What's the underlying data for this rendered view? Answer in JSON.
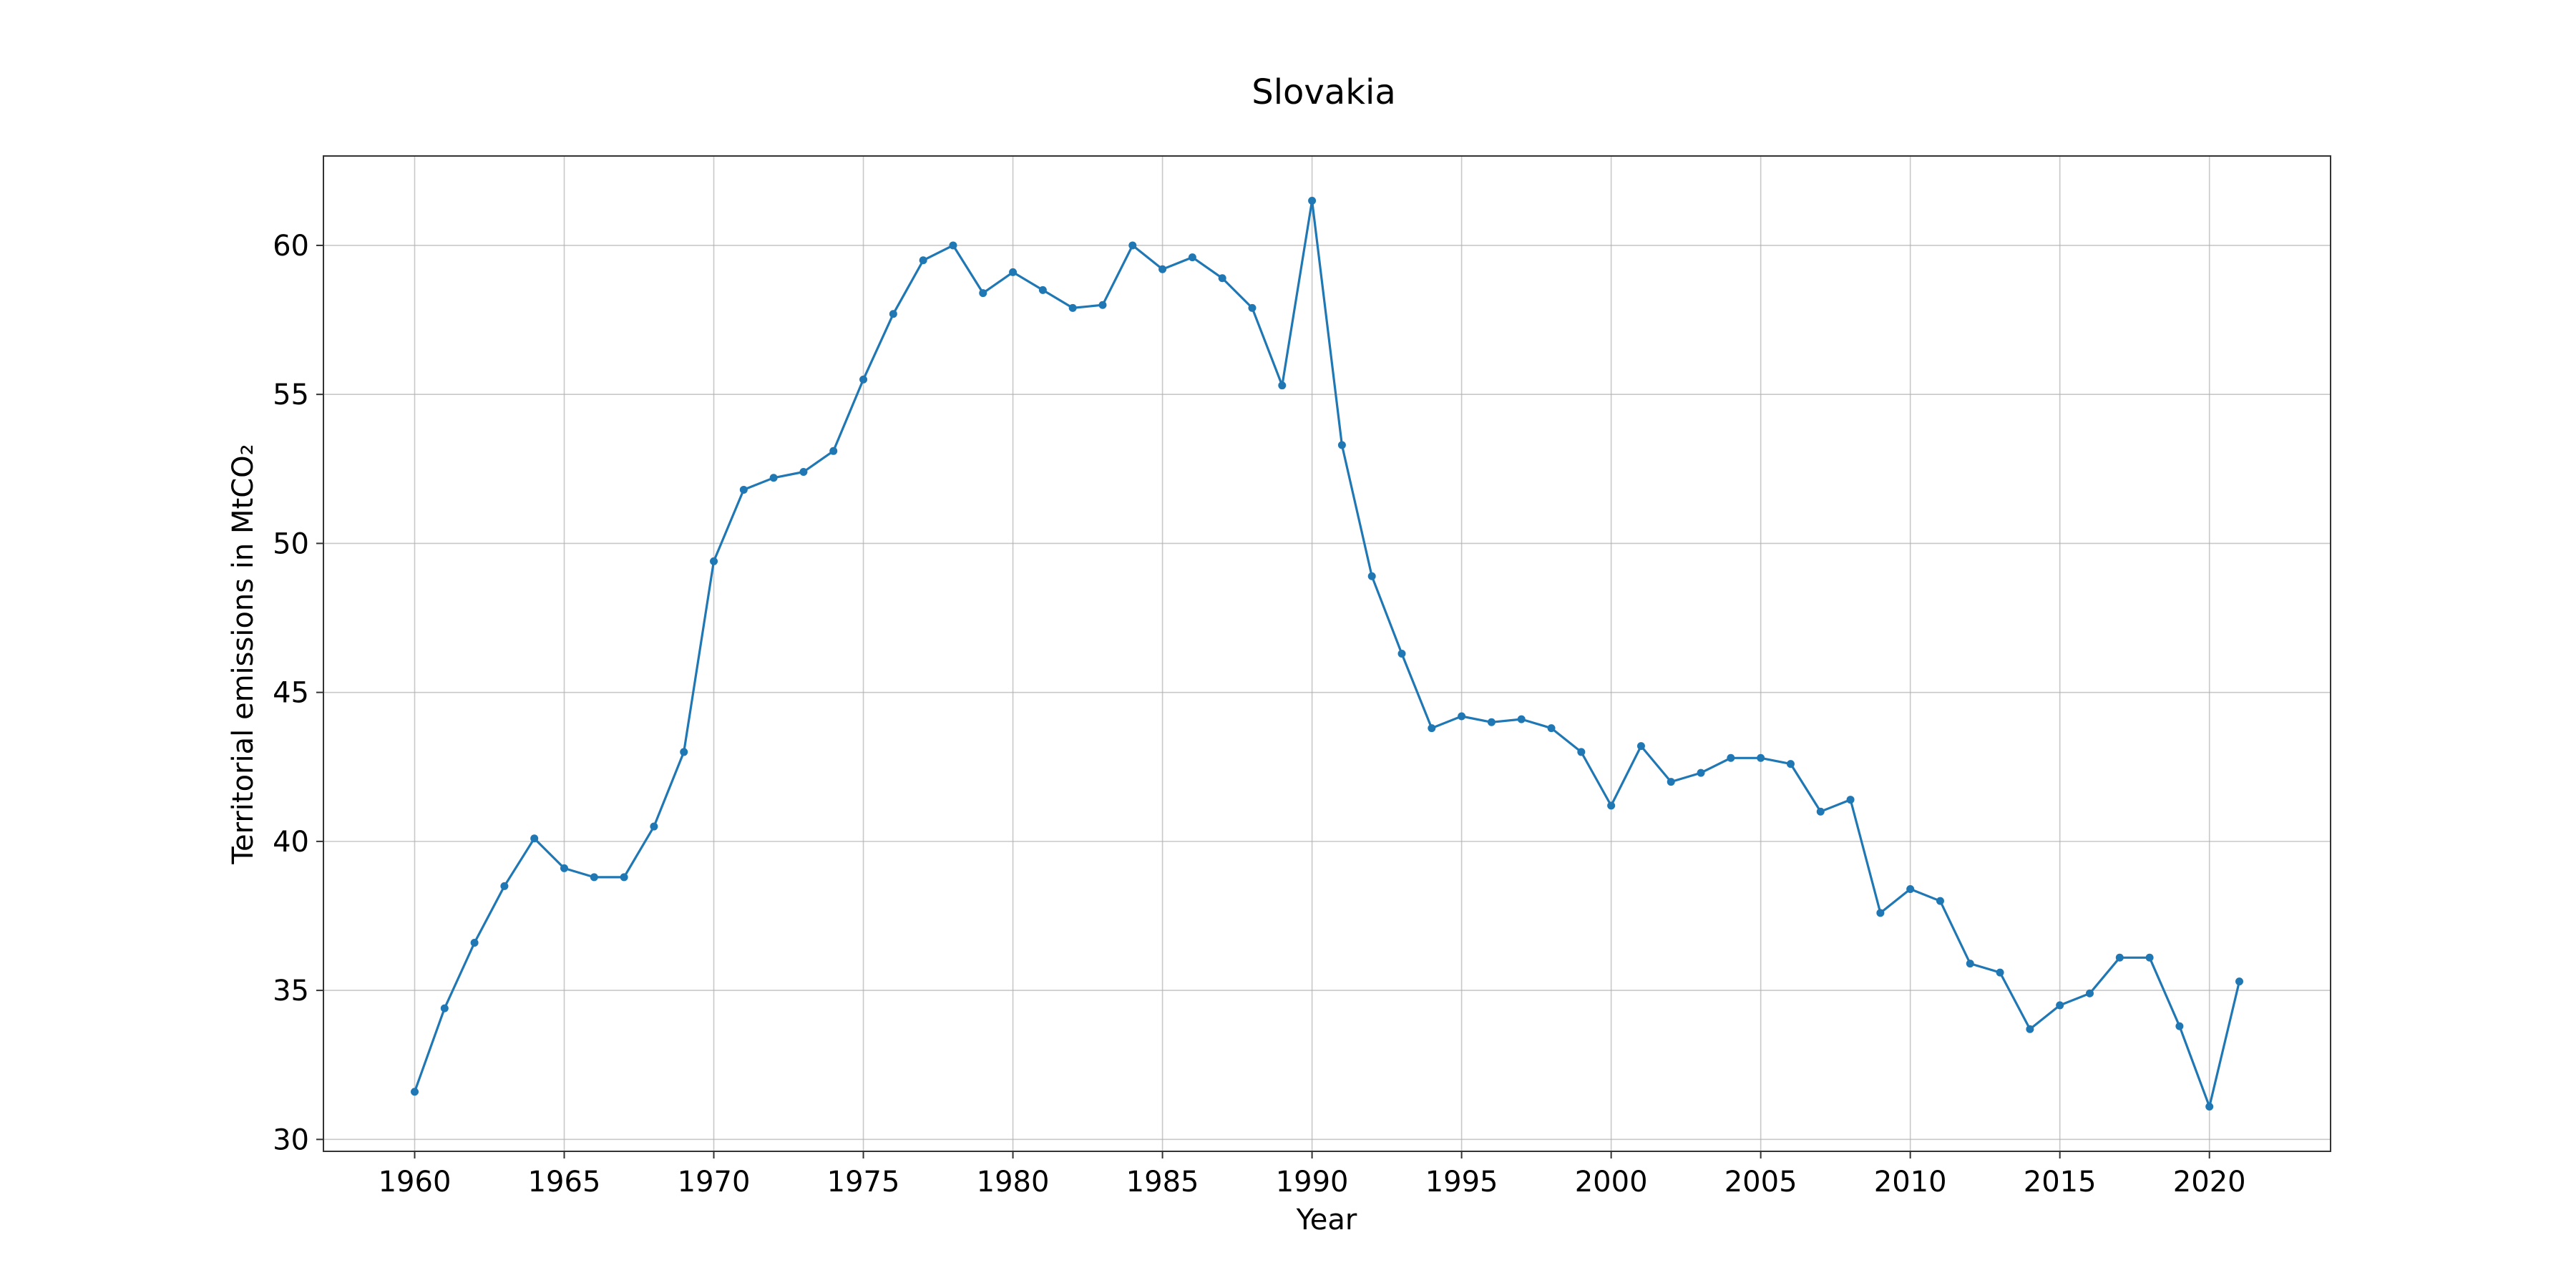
{
  "chart_data": {
    "type": "line",
    "title": "Slovakia",
    "xlabel": "Year",
    "ylabel": "Territorial emissions in MtCO₂",
    "xlim": [
      1956.95,
      2024.05
    ],
    "ylim": [
      29.6,
      63.0
    ],
    "xticks": [
      1960,
      1965,
      1970,
      1975,
      1980,
      1985,
      1990,
      1995,
      2000,
      2005,
      2010,
      2015,
      2020
    ],
    "yticks": [
      30,
      35,
      40,
      45,
      50,
      55,
      60
    ],
    "grid": true,
    "marker": "dot",
    "series": [
      {
        "color": "#1f77b4",
        "points": [
          [
            1960,
            31.6
          ],
          [
            1961,
            34.4
          ],
          [
            1962,
            36.6
          ],
          [
            1963,
            38.5
          ],
          [
            1964,
            40.1
          ],
          [
            1965,
            39.1
          ],
          [
            1966,
            38.8
          ],
          [
            1967,
            38.8
          ],
          [
            1968,
            40.5
          ],
          [
            1969,
            43.0
          ],
          [
            1970,
            49.4
          ],
          [
            1971,
            51.8
          ],
          [
            1972,
            52.2
          ],
          [
            1973,
            52.4
          ],
          [
            1974,
            53.1
          ],
          [
            1975,
            55.5
          ],
          [
            1976,
            57.7
          ],
          [
            1977,
            59.5
          ],
          [
            1978,
            60.0
          ],
          [
            1979,
            58.4
          ],
          [
            1980,
            59.1
          ],
          [
            1981,
            58.5
          ],
          [
            1982,
            57.9
          ],
          [
            1983,
            58.0
          ],
          [
            1984,
            60.0
          ],
          [
            1985,
            59.2
          ],
          [
            1986,
            59.6
          ],
          [
            1987,
            58.9
          ],
          [
            1988,
            57.9
          ],
          [
            1989,
            55.3
          ],
          [
            1990,
            61.5
          ],
          [
            1991,
            53.3
          ],
          [
            1992,
            48.9
          ],
          [
            1993,
            46.3
          ],
          [
            1994,
            43.8
          ],
          [
            1995,
            44.2
          ],
          [
            1996,
            44.0
          ],
          [
            1997,
            44.1
          ],
          [
            1998,
            43.8
          ],
          [
            1999,
            43.0
          ],
          [
            2000,
            41.2
          ],
          [
            2001,
            43.2
          ],
          [
            2002,
            42.0
          ],
          [
            2003,
            42.3
          ],
          [
            2004,
            42.8
          ],
          [
            2005,
            42.8
          ],
          [
            2006,
            42.6
          ],
          [
            2007,
            41.0
          ],
          [
            2008,
            41.4
          ],
          [
            2009,
            37.6
          ],
          [
            2010,
            38.4
          ],
          [
            2011,
            38.0
          ],
          [
            2012,
            35.9
          ],
          [
            2013,
            35.6
          ],
          [
            2014,
            33.7
          ],
          [
            2015,
            34.5
          ],
          [
            2016,
            34.9
          ],
          [
            2017,
            36.1
          ],
          [
            2018,
            36.1
          ],
          [
            2019,
            33.8
          ],
          [
            2020,
            31.1
          ],
          [
            2021,
            35.3
          ]
        ]
      }
    ]
  }
}
